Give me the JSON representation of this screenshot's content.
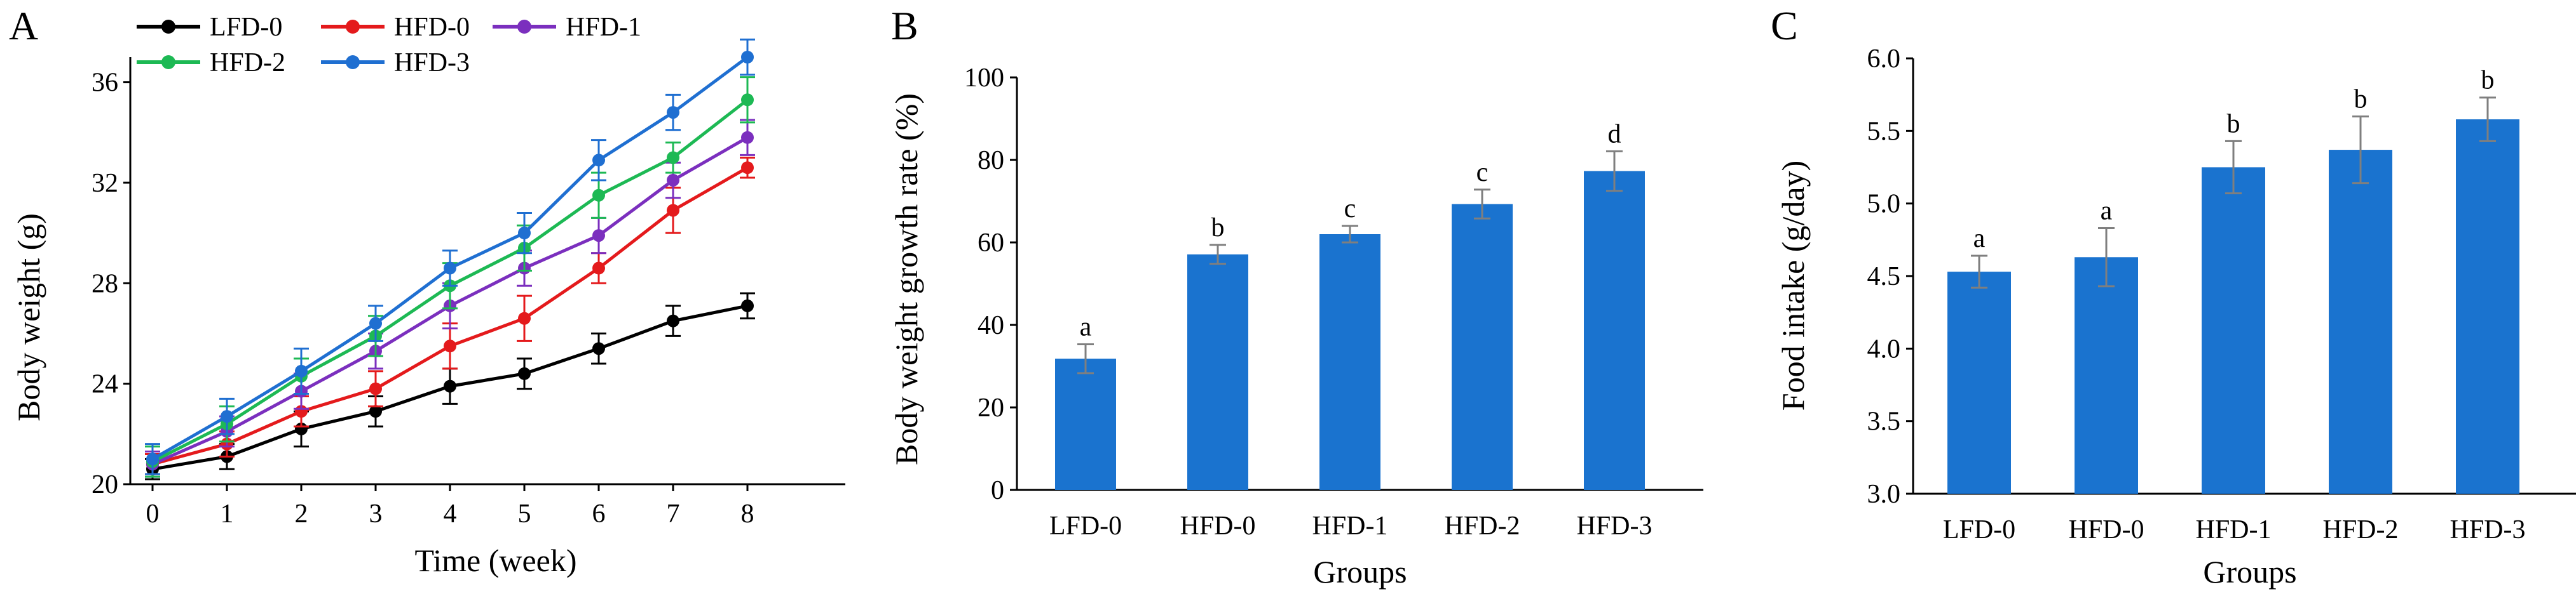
{
  "chart_data": [
    {
      "panel": "A",
      "type": "line",
      "title": "",
      "xlabel": "Time (week)",
      "ylabel": "Body weight (g)",
      "x": [
        0,
        1,
        2,
        3,
        4,
        5,
        6,
        7,
        8
      ],
      "xticks": [
        "0",
        "1",
        "2",
        "3",
        "4",
        "5",
        "6",
        "7",
        "8"
      ],
      "ylim": [
        20,
        37
      ],
      "yticks": [
        "20",
        "24",
        "28",
        "32",
        "36"
      ],
      "legend_position": "top-left",
      "series": [
        {
          "name": "LFD-0",
          "color": "#000000",
          "values": [
            20.6,
            21.1,
            22.2,
            22.9,
            23.9,
            24.4,
            25.4,
            26.5,
            27.1
          ],
          "errors": [
            0.4,
            0.5,
            0.7,
            0.6,
            0.7,
            0.6,
            0.6,
            0.6,
            0.5
          ]
        },
        {
          "name": "HFD-0",
          "color": "#e41a1c",
          "values": [
            20.8,
            21.6,
            22.9,
            23.8,
            25.5,
            26.6,
            28.6,
            30.9,
            32.6
          ],
          "errors": [
            0.4,
            0.5,
            0.6,
            0.7,
            0.9,
            0.9,
            0.6,
            0.9,
            0.4
          ]
        },
        {
          "name": "HFD-1",
          "color": "#7b2fbe",
          "values": [
            20.8,
            22.1,
            23.7,
            25.3,
            27.1,
            28.6,
            29.9,
            32.1,
            33.8
          ],
          "errors": [
            0.5,
            0.6,
            0.7,
            0.7,
            0.9,
            0.7,
            0.7,
            0.7,
            0.7
          ]
        },
        {
          "name": "HFD-2",
          "color": "#1db954",
          "values": [
            20.9,
            22.4,
            24.3,
            25.9,
            27.9,
            29.4,
            31.5,
            33.0,
            35.3
          ],
          "errors": [
            0.6,
            0.7,
            0.7,
            0.8,
            0.9,
            0.9,
            0.9,
            0.6,
            0.9
          ]
        },
        {
          "name": "HFD-3",
          "color": "#1f6fd1",
          "values": [
            21.0,
            22.7,
            24.5,
            26.4,
            28.6,
            30.0,
            32.9,
            34.8,
            37.0
          ],
          "errors": [
            0.6,
            0.7,
            0.9,
            0.7,
            0.7,
            0.8,
            0.8,
            0.7,
            0.7
          ]
        }
      ]
    },
    {
      "panel": "B",
      "type": "bar",
      "title": "",
      "xlabel": "Groups",
      "ylabel": "Body weight growth rate (%)",
      "categories": [
        "LFD-0",
        "HFD-0",
        "HFD-1",
        "HFD-2",
        "HFD-3"
      ],
      "values": [
        31.8,
        57.1,
        62.0,
        69.3,
        77.3
      ],
      "errors": [
        3.5,
        2.3,
        2.0,
        3.5,
        4.8
      ],
      "significance": [
        "a",
        "b",
        "c",
        "c",
        "d"
      ],
      "ylim": [
        0,
        100
      ],
      "yticks": [
        "0",
        "20",
        "40",
        "60",
        "80",
        "100"
      ],
      "bar_color": "#1a73cf"
    },
    {
      "panel": "C",
      "type": "bar",
      "title": "",
      "xlabel": "Groups",
      "ylabel": "Food intake (g/day)",
      "categories": [
        "LFD-0",
        "HFD-0",
        "HFD-1",
        "HFD-2",
        "HFD-3"
      ],
      "values": [
        4.53,
        4.63,
        5.25,
        5.37,
        5.58
      ],
      "errors": [
        0.11,
        0.2,
        0.18,
        0.23,
        0.15
      ],
      "significance": [
        "a",
        "a",
        "b",
        "b",
        "b"
      ],
      "ylim": [
        3.0,
        6.0
      ],
      "yticks": [
        "3.0",
        "3.5",
        "4.0",
        "4.5",
        "5.0",
        "5.5",
        "6.0"
      ],
      "bar_color": "#1a73cf"
    }
  ]
}
